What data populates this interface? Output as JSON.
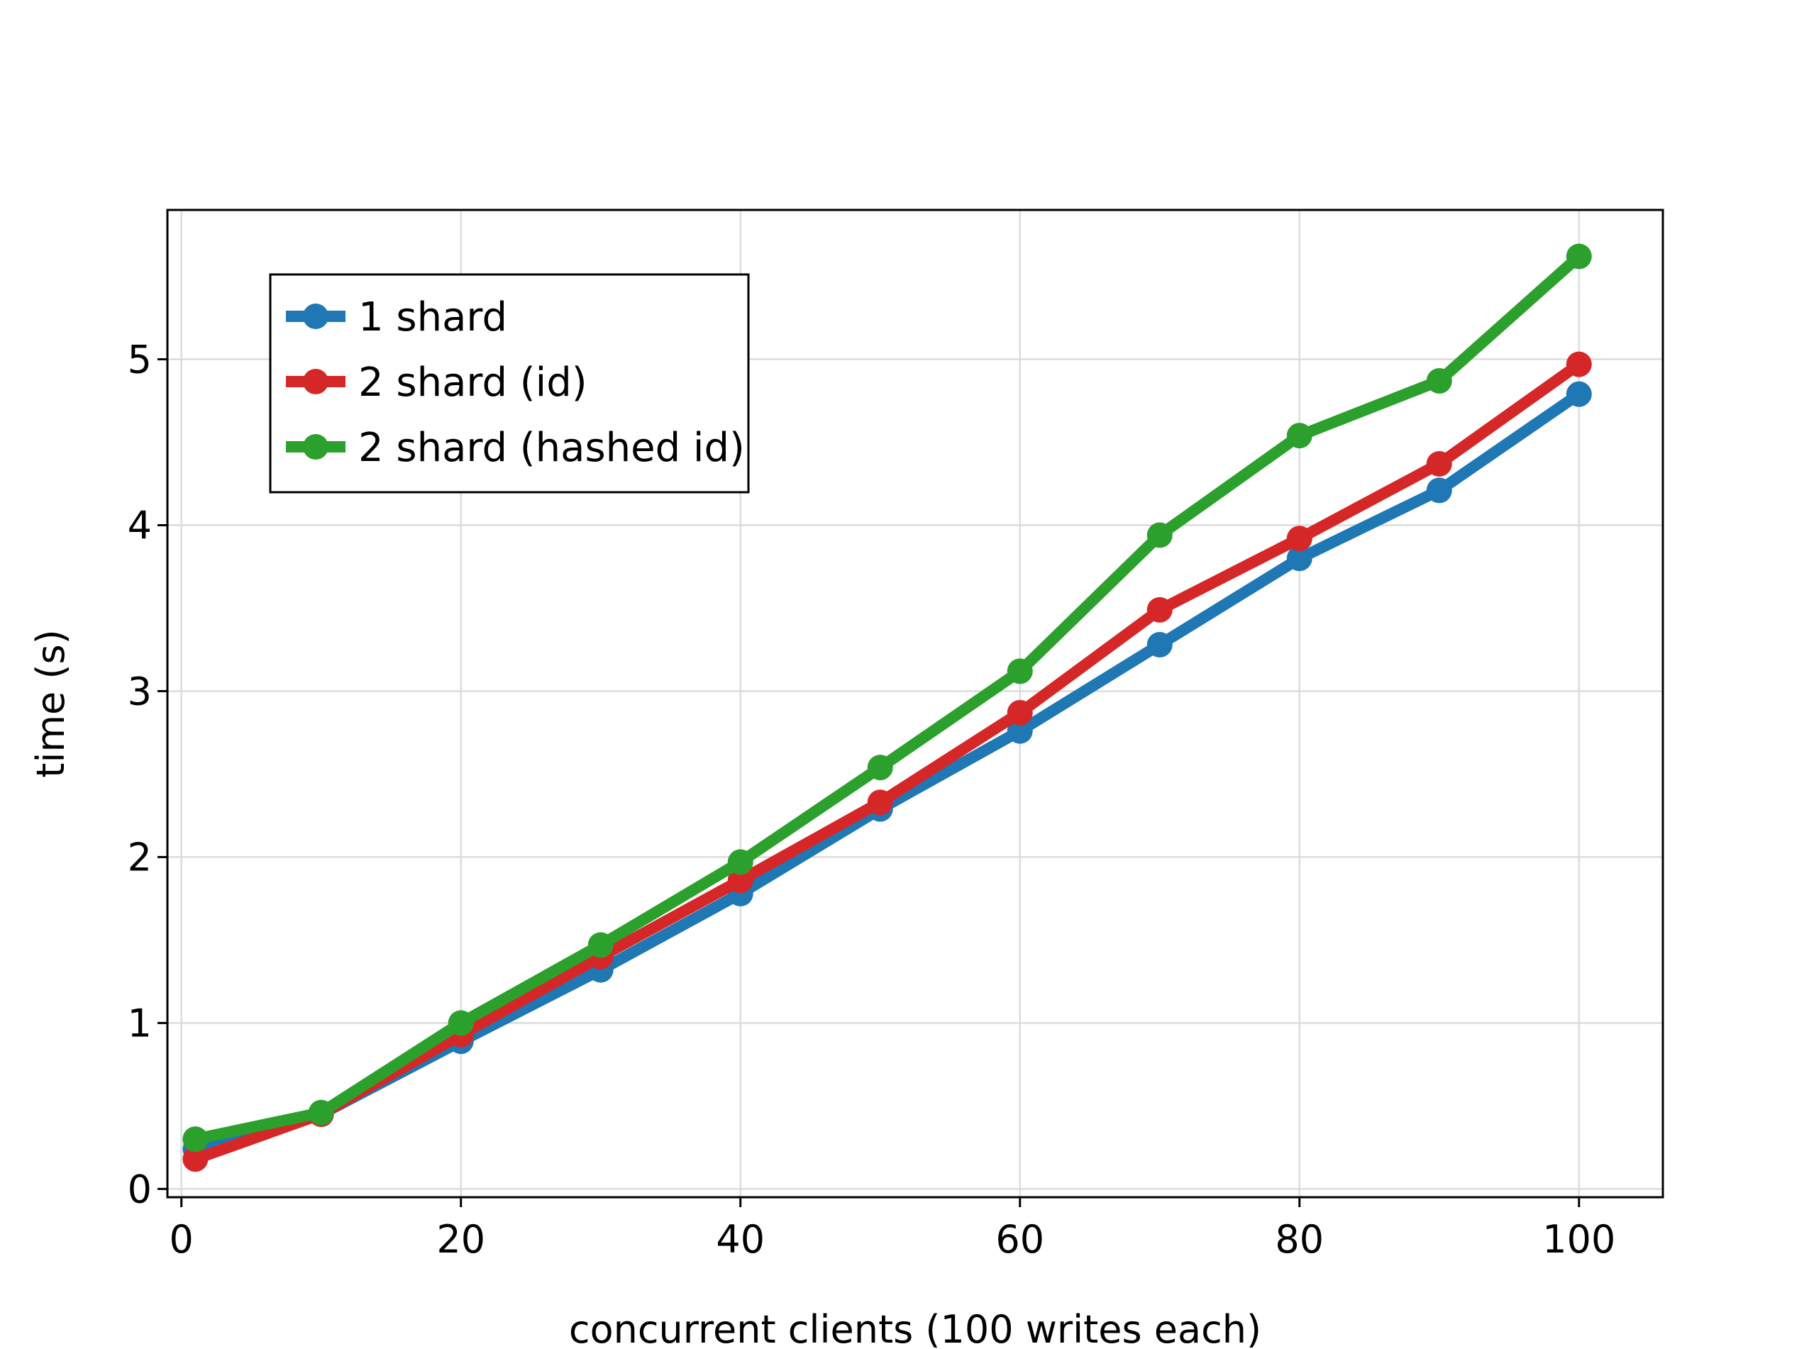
{
  "chart_data": {
    "type": "line",
    "title": "",
    "xlabel": "concurrent clients (100 writes each)",
    "ylabel": "time (s)",
    "xlim": [
      -1,
      106
    ],
    "ylim": [
      -0.05,
      5.9
    ],
    "x_ticks": [
      0,
      20,
      40,
      60,
      80,
      100
    ],
    "y_ticks": [
      0,
      1,
      2,
      3,
      4,
      5
    ],
    "grid": true,
    "legend_position": "top-left",
    "x": [
      1,
      10,
      20,
      30,
      40,
      50,
      60,
      70,
      80,
      90,
      100
    ],
    "series": [
      {
        "name": "1 shard",
        "color": "#1f77b4",
        "values": [
          0.24,
          0.45,
          0.89,
          1.32,
          1.78,
          2.29,
          2.76,
          3.28,
          3.8,
          4.21,
          4.79
        ]
      },
      {
        "name": "2 shard (id)",
        "color": "#d62728",
        "values": [
          0.18,
          0.45,
          0.93,
          1.4,
          1.86,
          2.33,
          2.87,
          3.49,
          3.92,
          4.37,
          4.97
        ]
      },
      {
        "name": "2 shard (hashed id)",
        "color": "#2ca02c",
        "values": [
          0.3,
          0.46,
          1.0,
          1.47,
          1.97,
          2.54,
          3.12,
          3.94,
          4.54,
          4.87,
          5.62
        ]
      }
    ]
  }
}
